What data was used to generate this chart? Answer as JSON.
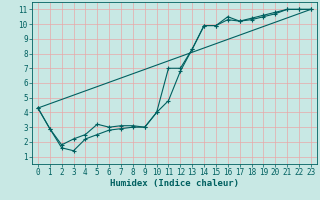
{
  "xlabel": "Humidex (Indice chaleur)",
  "background_color": "#c8e8e4",
  "grid_color": "#e8a8a8",
  "line_color": "#006060",
  "xlim": [
    -0.5,
    23.5
  ],
  "ylim": [
    0.5,
    11.5
  ],
  "xticks": [
    0,
    1,
    2,
    3,
    4,
    5,
    6,
    7,
    8,
    9,
    10,
    11,
    12,
    13,
    14,
    15,
    16,
    17,
    18,
    19,
    20,
    21,
    22,
    23
  ],
  "yticks": [
    1,
    2,
    3,
    4,
    5,
    6,
    7,
    8,
    9,
    10,
    11
  ],
  "line1_x": [
    0,
    1,
    2,
    3,
    4,
    5,
    6,
    7,
    8,
    9,
    10,
    11,
    12,
    13,
    14,
    15,
    16,
    17,
    18,
    19,
    20,
    21,
    22,
    23
  ],
  "line1_y": [
    4.3,
    2.9,
    1.8,
    2.2,
    2.5,
    3.2,
    3.0,
    3.1,
    3.1,
    3.0,
    4.0,
    4.8,
    6.8,
    8.3,
    9.9,
    9.9,
    10.3,
    10.2,
    10.3,
    10.5,
    10.7,
    11.0,
    11.0,
    11.0
  ],
  "line2_x": [
    0,
    1,
    2,
    3,
    4,
    5,
    6,
    7,
    8,
    9,
    10,
    11,
    12,
    13,
    14,
    15,
    16,
    17,
    18,
    19,
    20,
    21,
    22,
    23
  ],
  "line2_y": [
    4.3,
    2.9,
    1.6,
    1.4,
    2.2,
    2.5,
    2.8,
    2.9,
    3.0,
    3.0,
    4.0,
    7.0,
    7.0,
    8.3,
    9.9,
    9.9,
    10.5,
    10.2,
    10.4,
    10.6,
    10.8,
    11.0,
    11.0,
    11.0
  ],
  "line3_x": [
    0,
    23
  ],
  "line3_y": [
    4.3,
    11.0
  ],
  "tick_fontsize": 5.5,
  "xlabel_fontsize": 6.5
}
